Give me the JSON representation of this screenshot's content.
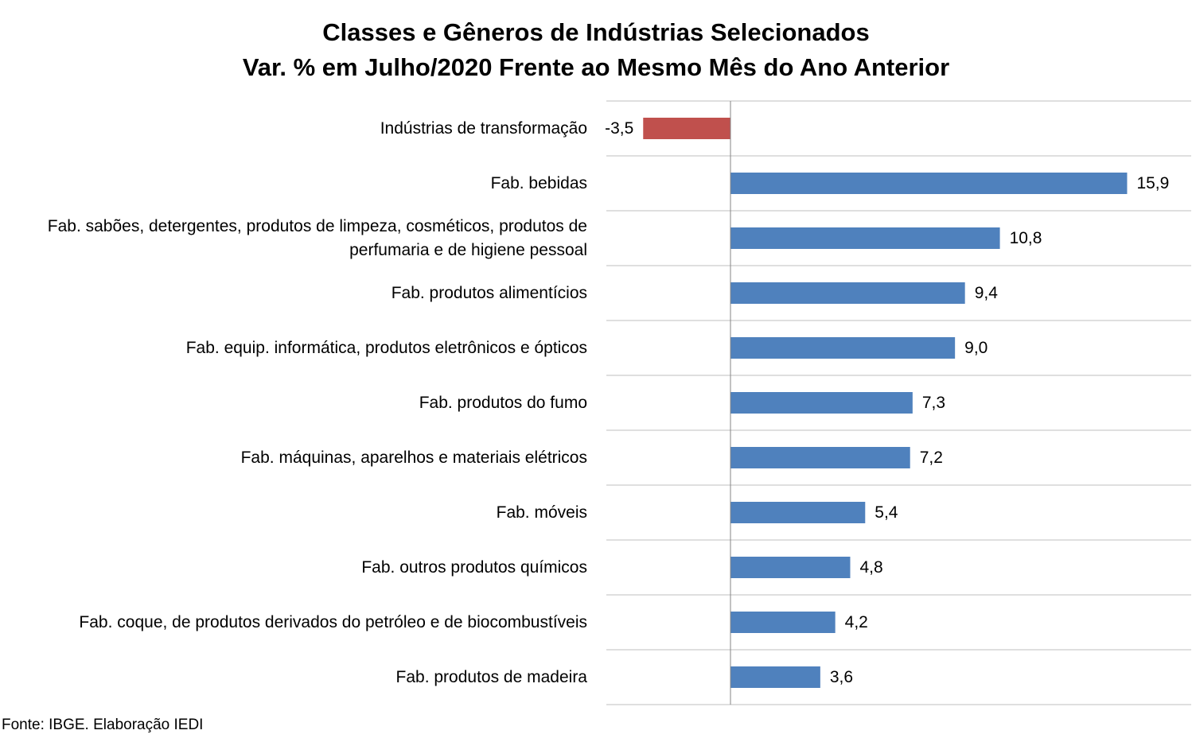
{
  "chart_data": {
    "type": "bar",
    "orientation": "horizontal",
    "title": "Classes e Gêneros de Indústrias Selecionados",
    "subtitle": "Var. % em Julho/2020 Frente ao Mesmo Mês do Ano Anterior",
    "categories": [
      "Indústrias de transformação",
      "Fab. bebidas",
      "Fab. sabões, detergentes, produtos de limpeza, cosméticos, produtos de perfumaria e de higiene pessoal",
      "Fab. produtos alimentícios",
      "Fab. equip. informática, produtos eletrônicos e ópticos",
      "Fab. produtos do fumo",
      "Fab. máquinas, aparelhos e materiais elétricos",
      "Fab. móveis",
      "Fab. outros produtos químicos",
      "Fab. coque, de produtos derivados do petróleo e de biocombustíveis",
      "Fab. produtos de madeira"
    ],
    "category_lines": [
      [
        "Indústrias de transformação"
      ],
      [
        "Fab. bebidas"
      ],
      [
        "Fab. sabões, detergentes, produtos de limpeza, cosméticos, produtos de",
        "perfumaria e de higiene pessoal"
      ],
      [
        "Fab. produtos alimentícios"
      ],
      [
        "Fab. equip. informática, produtos eletrônicos e ópticos"
      ],
      [
        "Fab. produtos do fumo"
      ],
      [
        "Fab. máquinas, aparelhos e materiais elétricos"
      ],
      [
        "Fab. móveis"
      ],
      [
        "Fab. outros produtos químicos"
      ],
      [
        "Fab. coque, de produtos derivados do petróleo e de biocombustíveis"
      ],
      [
        "Fab. produtos de madeira"
      ]
    ],
    "values": [
      -3.5,
      15.9,
      10.8,
      9.4,
      9.0,
      7.3,
      7.2,
      5.4,
      4.8,
      4.2,
      3.6
    ],
    "data_labels": [
      "-3,5",
      "15,9",
      "10,8",
      "9,4",
      "9,0",
      "7,3",
      "7,2",
      "5,4",
      "4,8",
      "4,2",
      "3,6"
    ],
    "xlim": [
      -5,
      18.5
    ],
    "grid": true,
    "legend": "none",
    "colors": {
      "positive": "#4F81BD",
      "negative": "#C0504D",
      "grid": "#BFBFBF",
      "axis": "#868686"
    }
  },
  "source": "Fonte: IBGE. Elaboração IEDI"
}
